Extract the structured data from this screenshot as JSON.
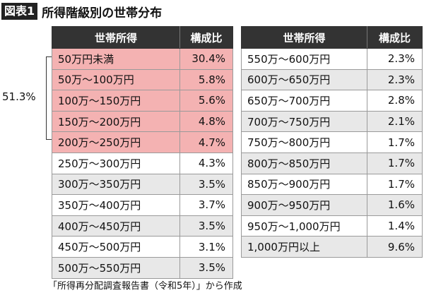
{
  "header": {
    "badge": "図表1",
    "title": "所得階級別の世帯分布"
  },
  "tables": {
    "left": {
      "col_income": "世帯所得",
      "col_ratio": "構成比",
      "rows": [
        {
          "income": "50万円未満",
          "ratio": "30.4%",
          "highlight": true
        },
        {
          "income": "50万～100万円",
          "ratio": "5.8%",
          "highlight": true
        },
        {
          "income": "100万～150万円",
          "ratio": "5.6%",
          "highlight": true
        },
        {
          "income": "150万～200万円",
          "ratio": "4.8%",
          "highlight": true
        },
        {
          "income": "200万～250万円",
          "ratio": "4.7%",
          "highlight": true
        },
        {
          "income": "250万～300万円",
          "ratio": "4.3%",
          "highlight": false
        },
        {
          "income": "300万～350万円",
          "ratio": "3.5%",
          "highlight": false
        },
        {
          "income": "350万～400万円",
          "ratio": "3.7%",
          "highlight": false
        },
        {
          "income": "400万～450万円",
          "ratio": "3.5%",
          "highlight": false
        },
        {
          "income": "450万～500万円",
          "ratio": "3.1%",
          "highlight": false
        },
        {
          "income": "500万～550万円",
          "ratio": "3.5%",
          "highlight": false
        }
      ]
    },
    "right": {
      "col_income": "世帯所得",
      "col_ratio": "構成比",
      "rows": [
        {
          "income": "550万～600万円",
          "ratio": "2.3%"
        },
        {
          "income": "600万～650万円",
          "ratio": "2.3%"
        },
        {
          "income": "650万～700万円",
          "ratio": "2.8%"
        },
        {
          "income": "700万～750万円",
          "ratio": "2.1%"
        },
        {
          "income": "750万～800万円",
          "ratio": "1.7%"
        },
        {
          "income": "800万～850万円",
          "ratio": "1.7%"
        },
        {
          "income": "850万～900万円",
          "ratio": "1.7%"
        },
        {
          "income": "900万～950万円",
          "ratio": "1.6%"
        },
        {
          "income": "950万～1,000万円",
          "ratio": "1.4%"
        },
        {
          "income": "1,000万円以上",
          "ratio": "9.6%"
        }
      ]
    }
  },
  "bracket": {
    "label": "51.3%"
  },
  "source": "「所得再分配調査報告書（令和5年）」から作成",
  "colors": {
    "header_bg": "#333333",
    "highlight": "#f4b2b2",
    "stripe": "#e8e8e8"
  }
}
